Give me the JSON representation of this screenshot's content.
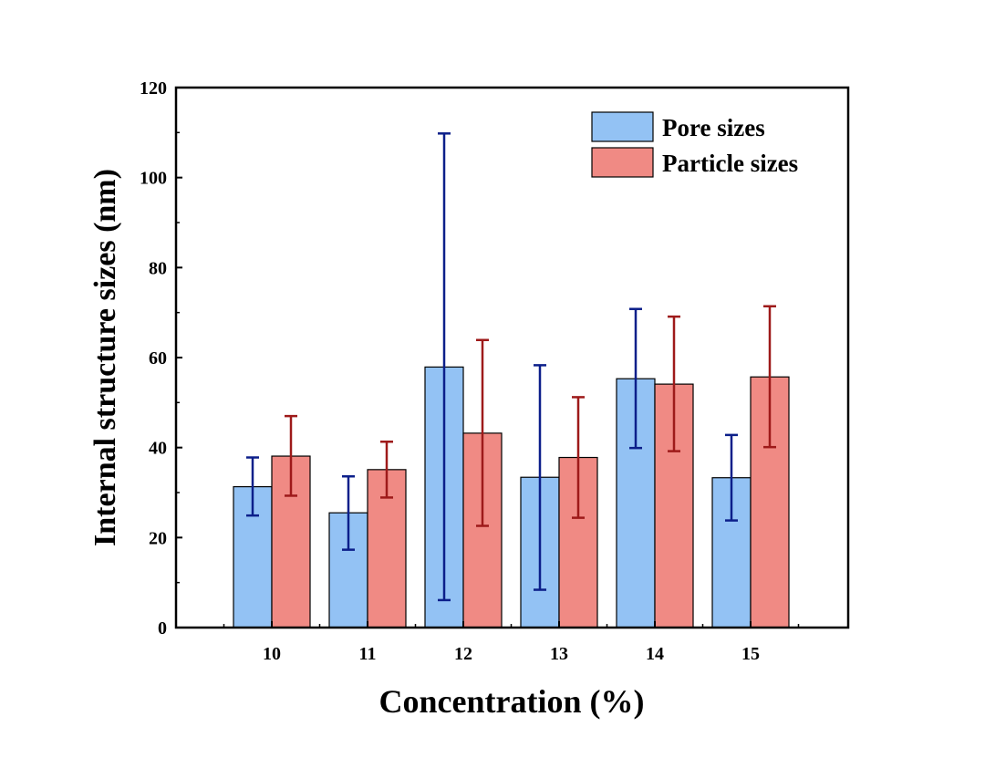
{
  "chart_data": {
    "type": "bar",
    "xlabel": "Concentration (%)",
    "ylabel": "Internal structure sizes (nm)",
    "categories": [
      "10",
      "11",
      "12",
      "13",
      "14",
      "15"
    ],
    "ylim": [
      0,
      120
    ],
    "yticks": [
      "0",
      "20",
      "40",
      "60",
      "80",
      "100",
      "120"
    ],
    "grid": false,
    "legend_position": "top-right",
    "error_bars": true,
    "series": [
      {
        "name": "Pore sizes",
        "color": "#93c2f4",
        "error_color": "#0c1f8a",
        "values": [
          31.3,
          25.5,
          57.9,
          33.4,
          55.3,
          33.3
        ],
        "err_low": [
          24.9,
          17.3,
          6.1,
          8.4,
          39.9,
          23.8
        ],
        "err_high": [
          37.8,
          33.6,
          109.8,
          58.3,
          70.8,
          42.8
        ]
      },
      {
        "name": "Particle sizes",
        "color": "#f08a84",
        "error_color": "#9e1a1a",
        "values": [
          38.1,
          35.1,
          43.2,
          37.8,
          54.1,
          55.7
        ],
        "err_low": [
          29.3,
          28.9,
          22.6,
          24.4,
          39.2,
          40.1
        ],
        "err_high": [
          47.0,
          41.3,
          63.9,
          51.2,
          69.1,
          71.4
        ]
      }
    ]
  }
}
